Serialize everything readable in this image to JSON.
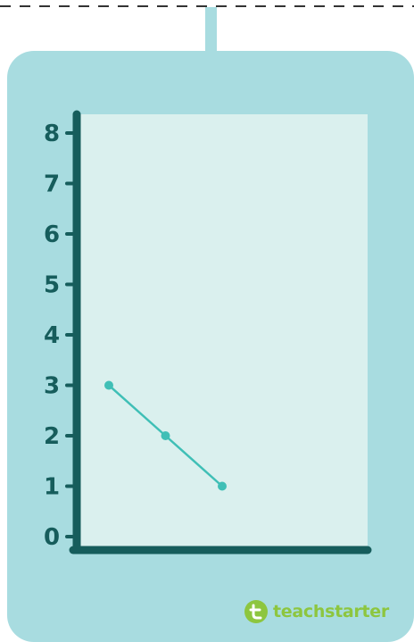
{
  "chart_data": {
    "type": "line",
    "title": "",
    "xlabel": "",
    "ylabel": "",
    "y_ticks": [
      "0",
      "1",
      "2",
      "3",
      "4",
      "5",
      "6",
      "7",
      "8"
    ],
    "ylim": [
      0,
      8.5
    ],
    "xlim": [
      0,
      5
    ],
    "grid": false,
    "series": [
      {
        "x": [
          1,
          2,
          3
        ],
        "y": [
          3,
          2,
          1
        ]
      }
    ],
    "colors": {
      "line": "#3fbfb6",
      "axis": "#165d5c",
      "plot_background": "#daf0ee",
      "card": "#a8dce0"
    }
  },
  "branding": {
    "logo_text": "teachstarter",
    "logo_color": "#8dc63f"
  }
}
